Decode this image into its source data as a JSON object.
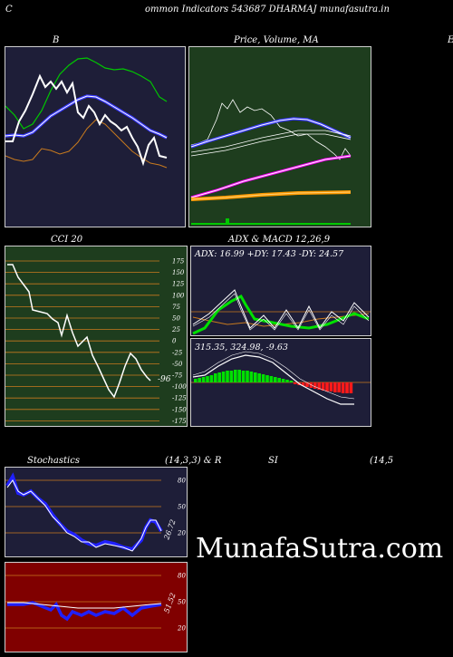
{
  "header": {
    "title": "ommon  Indicators 543687 DHARMAJ munafasutra.in",
    "left_letter": "C"
  },
  "bb": {
    "label": "B"
  },
  "price": {
    "label": "Price,  Volume,  MA",
    "right_letter": "E"
  },
  "cci": {
    "label": "CCI 20",
    "value": "-96",
    "ticks": [
      "175",
      "150",
      "125",
      "100",
      "75",
      "50",
      "25",
      "0",
      "-25",
      "-50",
      "-75",
      "-100",
      "-125",
      "-150",
      "-175"
    ]
  },
  "adx_macd": {
    "label": "ADX  & MACD 12,26,9",
    "adx_text": "ADX: 16.99  +DY: 17.43  -DY: 24.57",
    "macd_text": "315.35,  324.98,  -9.63"
  },
  "stoch": {
    "label_left": "Stochastics",
    "label_params": "(14,3,3) & R",
    "value": "26.72",
    "ticks": [
      "80",
      "50",
      "20"
    ]
  },
  "rsi": {
    "label_si": "SI",
    "label_params": "(14,5",
    "value": "51.52",
    "ticks": [
      "80",
      "50",
      "20"
    ]
  },
  "watermark": {
    "text": "MunafaSutra.com"
  },
  "colors": {
    "bb_bg": "#1e1e38",
    "price_bg": "#1e3d1e",
    "cci_bg": "#1e3d1e",
    "adx_bg": "#1e1e38",
    "stoch_bg": "#1e1e38",
    "rsi_bg": "#800000",
    "grid": "#c87a1e"
  }
}
